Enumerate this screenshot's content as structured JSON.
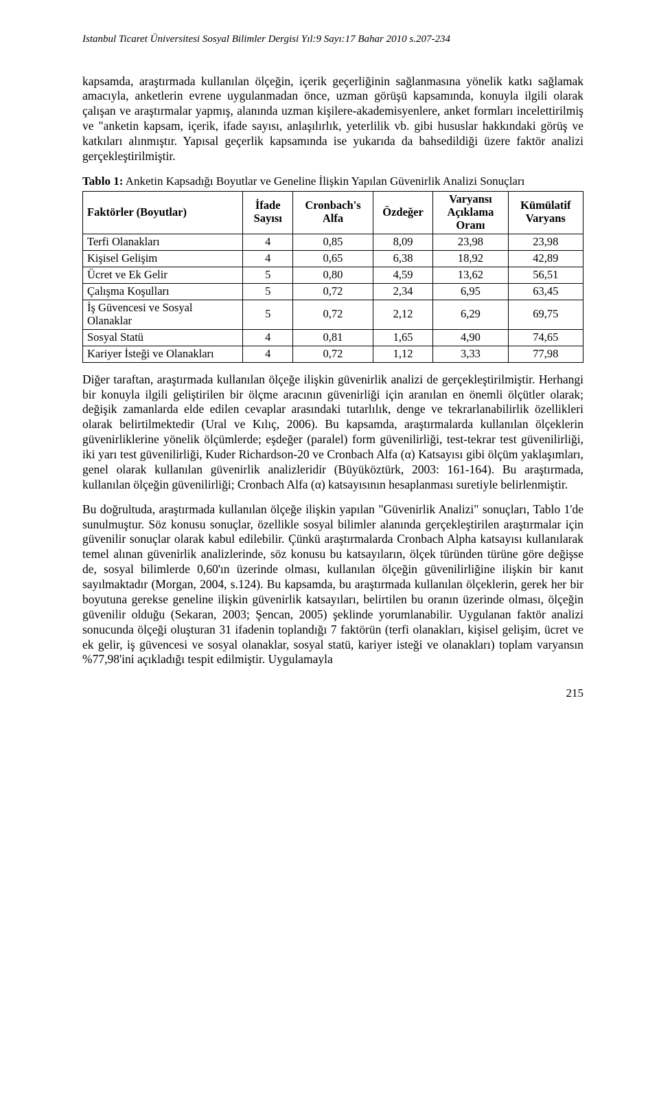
{
  "running_head": "Istanbul Ticaret Üniversitesi Sosyal Bilimler Dergisi Yıl:9 Sayı:17 Bahar 2010 s.207-234",
  "para1": "kapsamda, araştırmada kullanılan ölçeğin, içerik geçerliğinin sağlanmasına yönelik katkı sağlamak amacıyla,  anketlerin evrene uygulanmadan önce, uzman görüşü kapsamında, konuyla ilgili olarak çalışan ve araştırmalar yapmış, alanında uzman kişilere-akademisyenlere, anket formları incelettirilmiş ve \"anketin kapsam, içerik, ifade sayısı, anlaşılırlık, yeterlilik vb. gibi hususlar hakkındaki görüş ve katkıları alınmıştır. Yapısal geçerlik kapsamında ise yukarıda da bahsedildiği üzere faktör analizi gerçekleştirilmiştir.",
  "table_caption_bold": "Tablo 1:",
  "table_caption_rest": " Anketin Kapsadığı Boyutlar ve Geneline İlişkin Yapılan Güvenirlik Analizi Sonuçları",
  "table": {
    "columns": [
      "Faktörler (Boyutlar)",
      "İfade Sayısı",
      "Cronbach's Alfa",
      "Özdeğer",
      "Varyansı Açıklama Oranı",
      "Kümülatif Varyans"
    ],
    "col_widths_pct": [
      32,
      10,
      16,
      12,
      15,
      15
    ],
    "rows": [
      [
        "Terfi Olanakları",
        "4",
        "0,85",
        "8,09",
        "23,98",
        "23,98"
      ],
      [
        "Kişisel Gelişim",
        "4",
        "0,65",
        "6,38",
        "18,92",
        "42,89"
      ],
      [
        "Ücret ve Ek Gelir",
        "5",
        "0,80",
        "4,59",
        "13,62",
        "56,51"
      ],
      [
        "Çalışma Koşulları",
        "5",
        "0,72",
        "2,34",
        "6,95",
        "63,45"
      ],
      [
        "İş Güvencesi ve Sosyal Olanaklar",
        "5",
        "0,72",
        "2,12",
        "6,29",
        "69,75"
      ],
      [
        "Sosyal Statü",
        "4",
        "0,81",
        "1,65",
        "4,90",
        "74,65"
      ],
      [
        "Kariyer İsteği ve Olanakları",
        "4",
        "0,72",
        "1,12",
        "3,33",
        "77,98"
      ]
    ]
  },
  "para2": "Diğer taraftan, araştırmada kullanılan ölçeğe ilişkin güvenirlik analizi de gerçekleştirilmiştir. Herhangi bir konuyla ilgili geliştirilen bir ölçme aracının güvenirliği için aranılan en önemli ölçütler olarak; değişik zamanlarda elde edilen cevaplar arasındaki tutarlılık, denge ve tekrarlanabilirlik özellikleri olarak belirtilmektedir (Ural ve Kılıç, 2006). Bu kapsamda, araştırmalarda kullanılan ölçeklerin güvenirliklerine yönelik ölçümlerde; eşdeğer (paralel) form güvenilirliği, test-tekrar test güvenilirliği,  iki yarı test güvenilirliği, Kuder Richardson-20 ve Cronbach Alfa (α) Katsayısı gibi ölçüm yaklaşımları, genel olarak kullanılan güvenirlik analizleridir (Büyüköztürk, 2003: 161-164). Bu araştırmada, kullanılan ölçeğin güvenilirliği; Cronbach Alfa (α) katsayısının hesaplanması suretiyle belirlenmiştir.",
  "para3": "Bu doğrultuda, araştırmada kullanılan ölçeğe ilişkin yapılan \"Güvenirlik Analizi\" sonuçları, Tablo 1'de sunulmuştur. Söz konusu sonuçlar, özellikle sosyal bilimler alanında gerçekleştirilen araştırmalar için güvenilir sonuçlar olarak kabul edilebilir. Çünkü araştırmalarda Cronbach Alpha katsayısı kullanılarak temel alınan güvenirlik analizlerinde, söz konusu bu katsayıların, ölçek türünden türüne göre değişse de, sosyal bilimlerde 0,60'ın üzerinde olması, kullanılan ölçeğin güvenilirliğine ilişkin bir kanıt sayılmaktadır (Morgan, 2004, s.124). Bu kapsamda, bu araştırmada kullanılan ölçeklerin, gerek her bir boyutuna gerekse geneline ilişkin güvenirlik katsayıları, belirtilen bu oranın üzerinde olması, ölçeğin güvenilir olduğu (Sekaran, 2003; Şencan, 2005) şeklinde yorumlanabilir. Uygulanan faktör analizi sonucunda ölçeği oluşturan 31 ifadenin toplandığı 7 faktörün (terfi olanakları, kişisel gelişim, ücret ve ek gelir, iş güvencesi ve sosyal olanaklar, sosyal statü, kariyer isteği ve olanakları) toplam varyansın %77,98'ini açıkladığı tespit edilmiştir. Uygulamayla",
  "page_number": "215"
}
